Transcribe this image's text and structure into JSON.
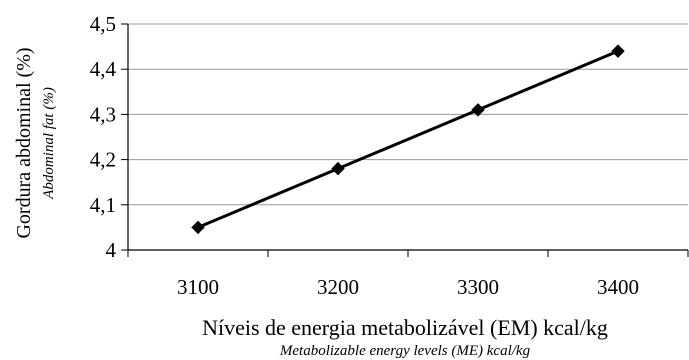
{
  "chart_data": {
    "type": "line",
    "x": [
      3100,
      3200,
      3300,
      3400
    ],
    "x_tick_labels": [
      "3100",
      "3200",
      "3300",
      "3400"
    ],
    "xlim": [
      3050,
      3450
    ],
    "y_tick_labels": [
      "4",
      "4,1",
      "4,2",
      "4,3",
      "4,4",
      "4,5"
    ],
    "y_ticks": [
      4.0,
      4.1,
      4.2,
      4.3,
      4.4,
      4.5
    ],
    "ylim": [
      4.0,
      4.5
    ],
    "series": [
      {
        "values": [
          4.05,
          4.18,
          4.31,
          4.44
        ],
        "color": "#000000",
        "marker": "diamond"
      }
    ],
    "xlabel": "Níveis de energia metabolizável (EM) kcal/kg",
    "xlabel_secondary": "Metabolizable energy levels (ME) kcal/kg",
    "ylabel": "Gordura abdominal (%)",
    "ylabel_secondary": "Abdominal fat (%)",
    "grid": "horizontal",
    "legend": "none"
  }
}
